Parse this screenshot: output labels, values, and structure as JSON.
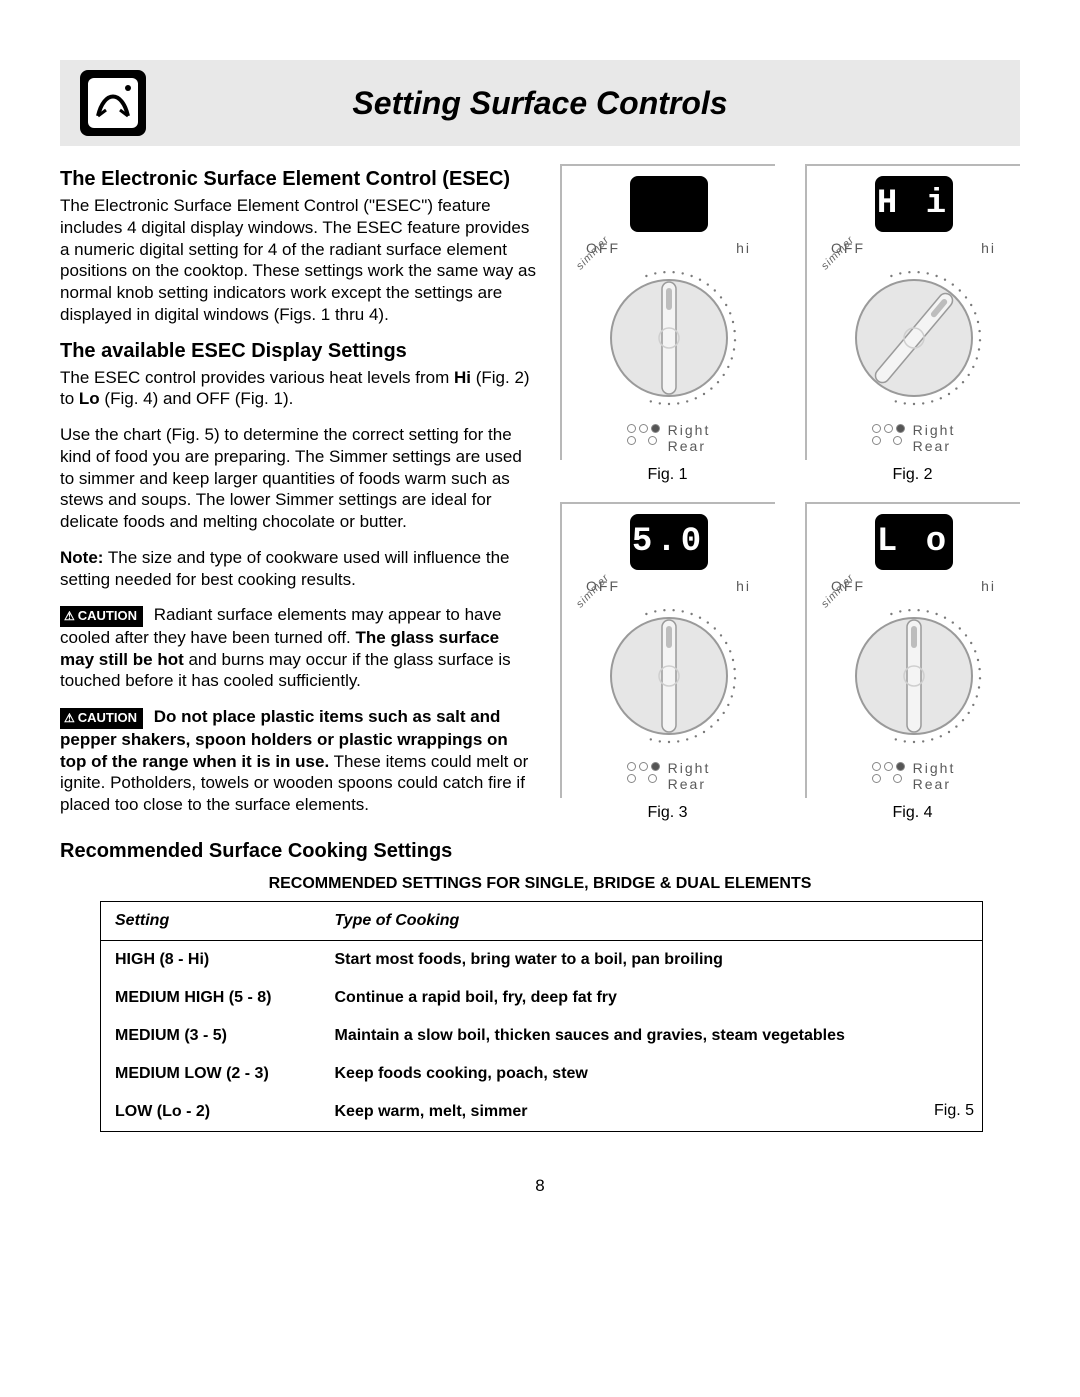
{
  "page": {
    "title": "Setting Surface Controls",
    "number": "8"
  },
  "sections": {
    "esec": {
      "heading": "The Electronic Surface Element Control (ESEC)",
      "body": "The Electronic Surface Element Control (\"ESEC\") feature includes 4 digital display windows. The ESEC feature provides a numeric digital setting for 4 of the radiant surface element positions on the cooktop. These settings work the same way as normal knob setting indicators work except the settings are displayed in digital windows (Figs. 1 thru 4)."
    },
    "display_settings": {
      "heading": "The available ESEC Display Settings",
      "p1_pre": "The ESEC control provides various heat levels from ",
      "p1_hi": "Hi",
      "p1_mid": " (Fig. 2) to ",
      "p1_lo": "Lo",
      "p1_post": " (Fig. 4) and OFF (Fig. 1).",
      "p2": "Use the chart (Fig. 5) to determine the correct setting for the kind of food you are preparing. The Simmer settings are used to simmer and keep larger quantities of foods warm such as stews and soups. The lower Simmer settings are ideal for delicate foods and melting chocolate or butter.",
      "note_label": "Note:",
      "note": " The size and type of cookware used will influence the setting needed for best cooking results."
    },
    "cautions": {
      "badge": "CAUTION",
      "c1_pre": " Radiant surface elements may appear to have cooled after they have been turned off. ",
      "c1_bold": "The glass surface may still be hot",
      "c1_post": " and burns may occur if the glass surface is touched before it has cooled sufficiently.",
      "c2_bold": " Do not place plastic items such as salt and pepper shakers, spoon holders or plastic wrappings on top of the range when it is in use.",
      "c2_post": " These items could melt or ignite. Potholders, towels or wooden spoons could catch fire if placed too close to the surface elements."
    },
    "recommended": {
      "heading": "Recommended Surface Cooking Settings",
      "table_title": "RECOMMENDED SETTINGS FOR SINGLE, BRIDGE & DUAL ELEMENTS",
      "col_setting": "Setting",
      "col_type": "Type of Cooking",
      "rows": [
        {
          "setting": "HIGH (8 - Hi)",
          "type": "Start most foods, bring water to a boil, pan broiling"
        },
        {
          "setting": "MEDIUM HIGH (5 - 8)",
          "type": "Continue a rapid boil, fry, deep fat fry"
        },
        {
          "setting": "MEDIUM (3 - 5)",
          "type": "Maintain a slow boil, thicken sauces and gravies, steam vegetables"
        },
        {
          "setting": "MEDIUM LOW (2 - 3)",
          "type": "Keep foods cooking, poach, stew"
        },
        {
          "setting": "LOW (Lo - 2)",
          "type": "Keep warm, melt, simmer"
        }
      ],
      "fig5": "Fig. 5"
    }
  },
  "figures": {
    "off_label": "OFF",
    "hi_label": "hi",
    "simmer_label": "simmer",
    "position_1": "Right",
    "position_2": "Rear",
    "items": [
      {
        "display": "",
        "caption": "Fig. 1",
        "angle": 0
      },
      {
        "display": "H i",
        "caption": "Fig. 2",
        "angle": 40
      },
      {
        "display": "5.0",
        "caption": "Fig. 3",
        "angle": 0
      },
      {
        "display": "L o",
        "caption": "Fig. 4",
        "angle": 0
      }
    ]
  },
  "style": {
    "bg_titlebar": "#e8e8e8",
    "text_color": "#000000",
    "knob_fill": "#e6e6e6",
    "knob_stroke": "#9a9a9a",
    "tick_color": "#7a7a7a"
  }
}
